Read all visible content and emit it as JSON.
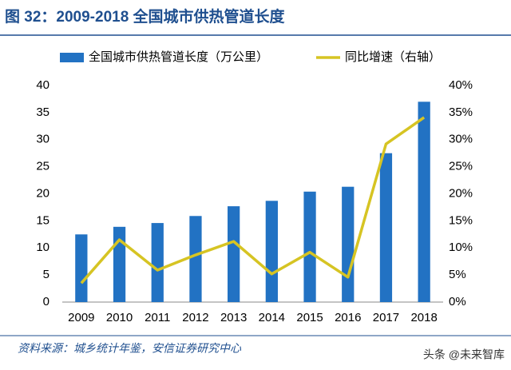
{
  "chart_data": {
    "type": "bar",
    "title": "图 32：2009-2018 全国城市供热管道长度",
    "categories": [
      "2009",
      "2010",
      "2011",
      "2012",
      "2013",
      "2014",
      "2015",
      "2016",
      "2017",
      "2018"
    ],
    "series": [
      {
        "name": "全国城市供热管道长度（万公里）",
        "color": "#2272c3",
        "type": "bar",
        "values": [
          12.5,
          13.9,
          14.6,
          15.9,
          17.7,
          18.7,
          20.4,
          21.3,
          27.5,
          37.0
        ]
      },
      {
        "name": "同比增速（右轴）",
        "color": "#d6c423",
        "type": "line",
        "axis": "y2",
        "values": [
          3.5,
          11.5,
          5.9,
          8.7,
          11.2,
          5.2,
          9.2,
          4.6,
          29.2,
          34.1
        ]
      }
    ],
    "ylim": [
      0,
      40
    ],
    "yticks": [
      0,
      5,
      10,
      15,
      20,
      25,
      30,
      35,
      40
    ],
    "y2lim": [
      0,
      40
    ],
    "y2ticks": [
      {
        "value": 0,
        "label": "0%"
      },
      {
        "value": 5,
        "label": "5%"
      },
      {
        "value": 10,
        "label": "10%"
      },
      {
        "value": 15,
        "label": "15%"
      },
      {
        "value": 20,
        "label": "20%"
      },
      {
        "value": 25,
        "label": "25%"
      },
      {
        "value": 30,
        "label": "30%"
      },
      {
        "value": 35,
        "label": "35%"
      },
      {
        "value": 40,
        "label": "40%"
      }
    ],
    "grid": false,
    "legend": "top",
    "source": "资料来源：城乡统计年鉴，安信证券研究中心",
    "watermark": "头条 @未来智库"
  }
}
